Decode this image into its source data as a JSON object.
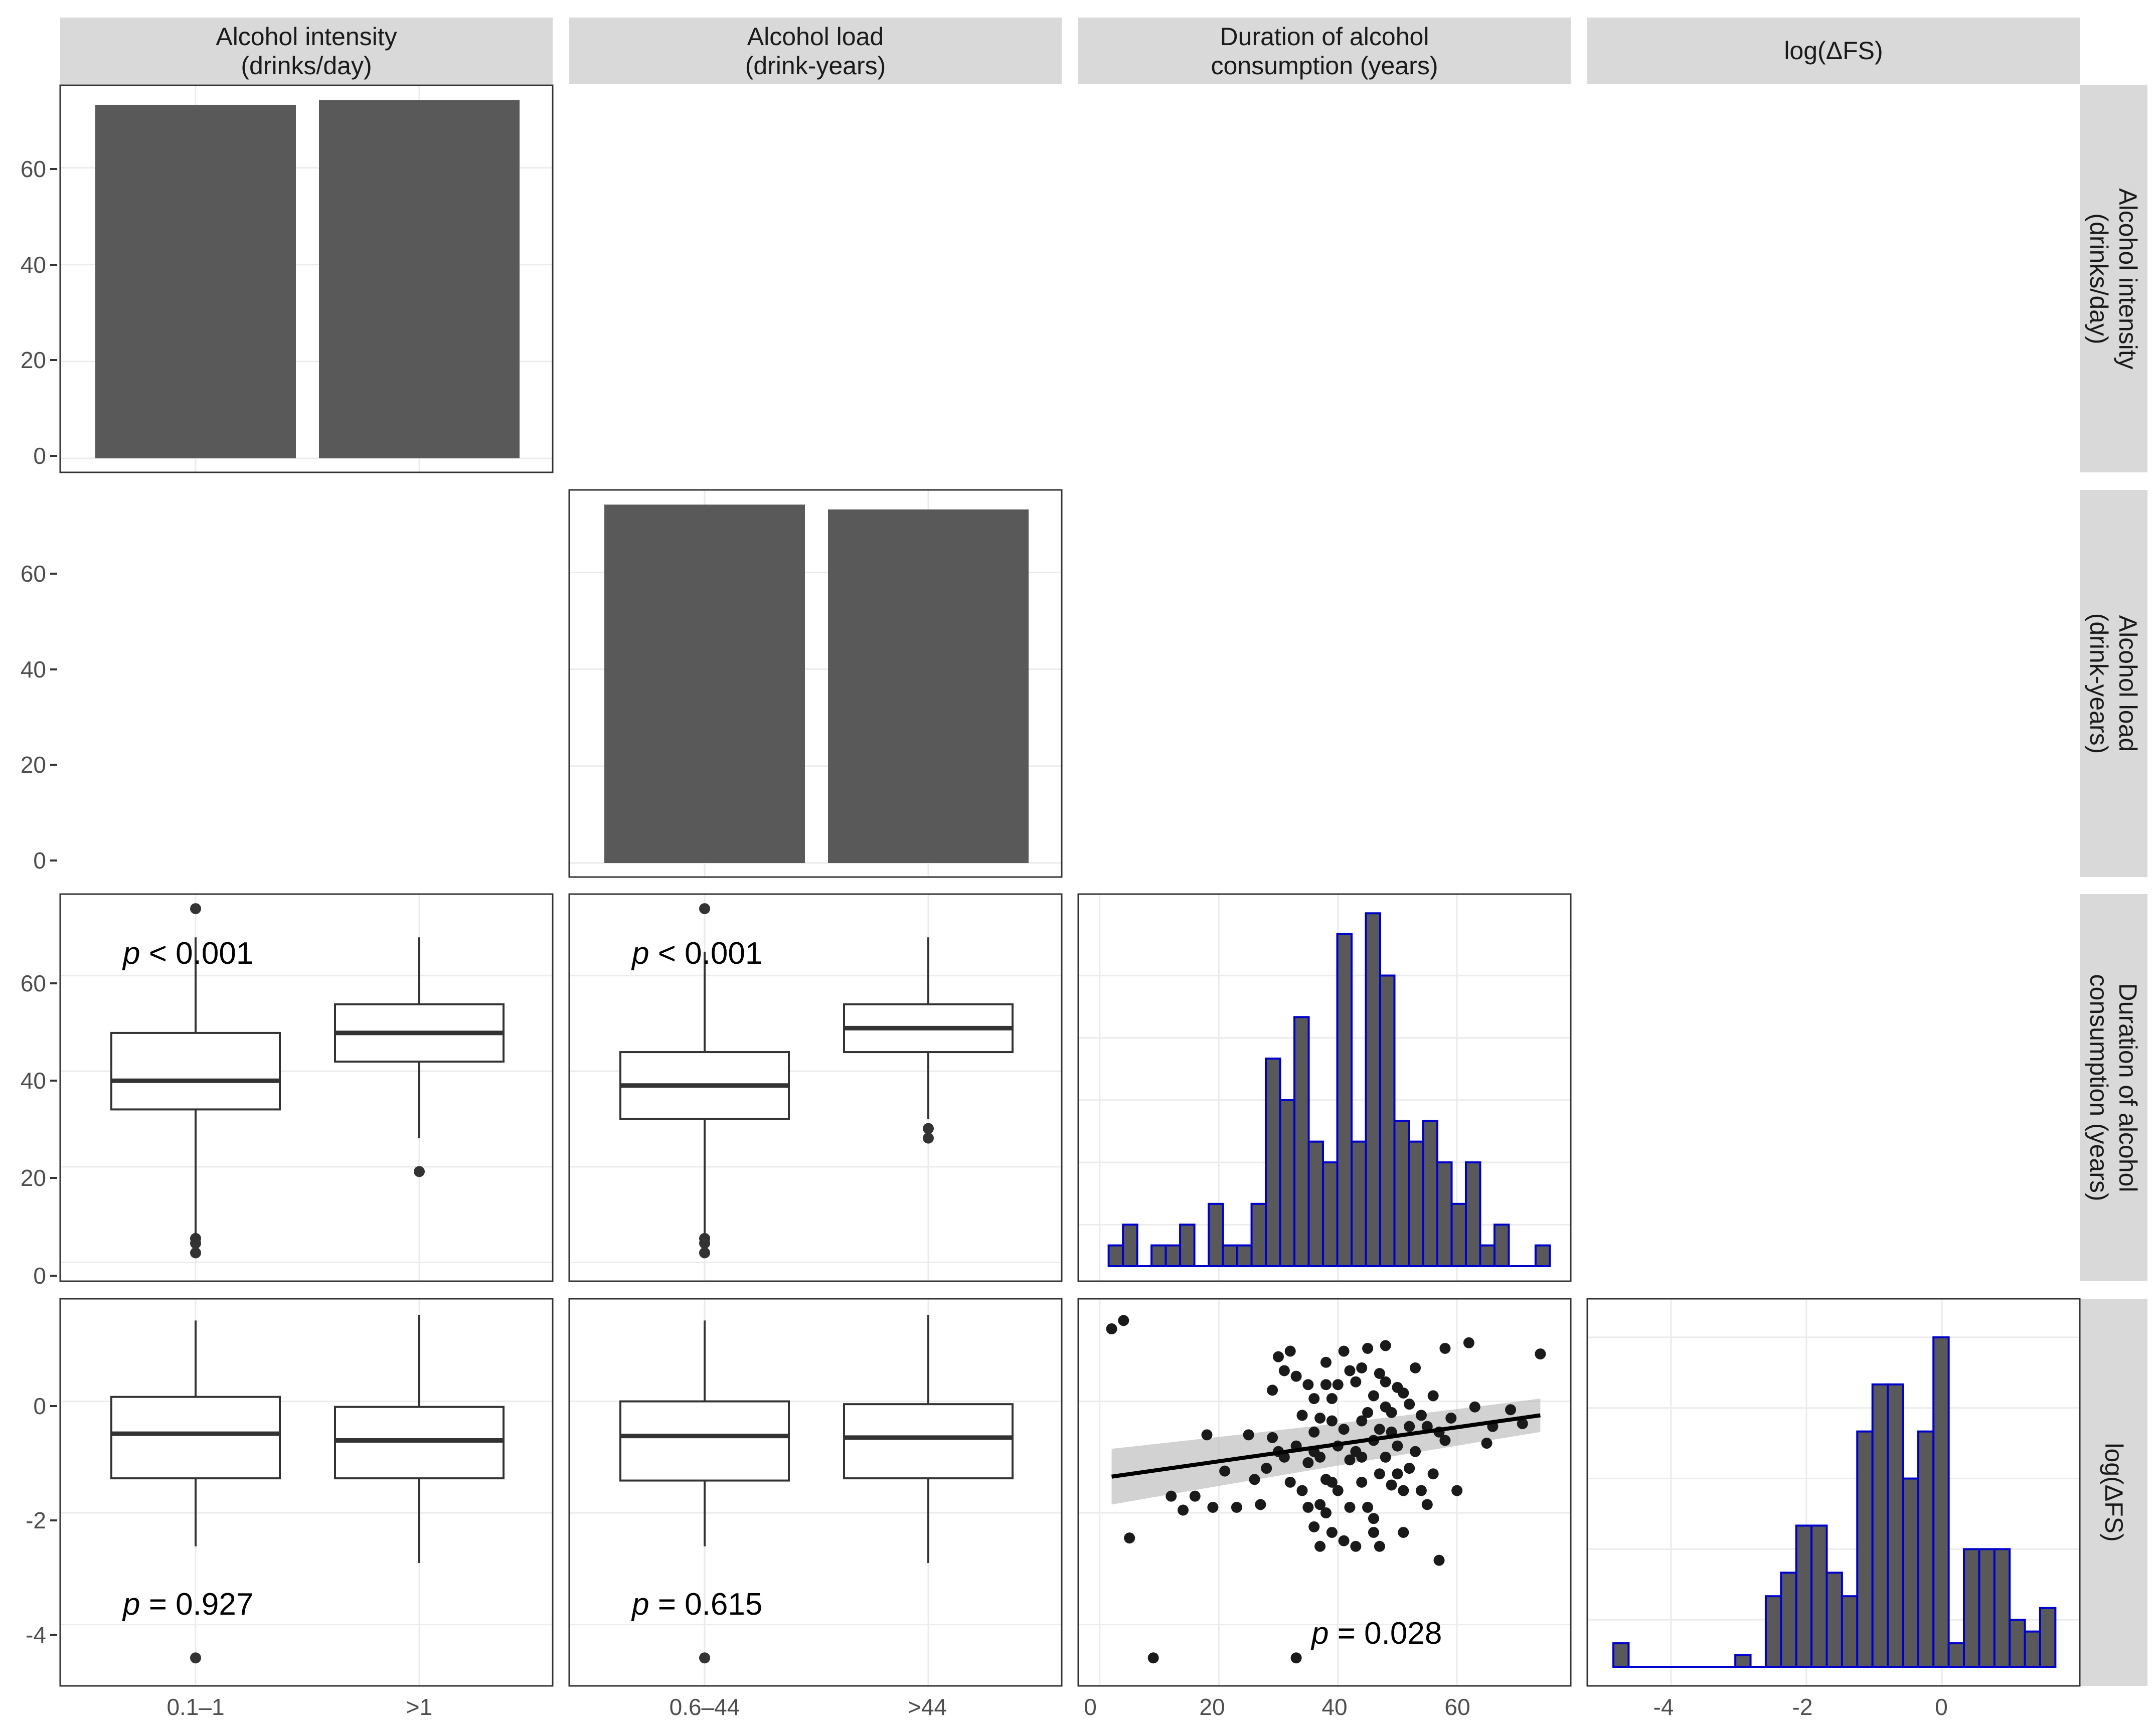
{
  "figure": {
    "columns": [
      {
        "label_line1": "Alcohol intensity",
        "label_line2": "(drinks/day)"
      },
      {
        "label_line1": "Alcohol load",
        "label_line2": "(drink-years)"
      },
      {
        "label_line1": "Duration of alcohol",
        "label_line2": "consumption (years)"
      },
      {
        "label_line1": "log(ΔFS)",
        "label_line2": ""
      }
    ],
    "rows": [
      {
        "label_line1": "Alcohol intensity",
        "label_line2": "(drinks/day)"
      },
      {
        "label_line1": "Alcohol load",
        "label_line2": "(drink-years)"
      },
      {
        "label_line1": "Duration of alcohol",
        "label_line2": "consumption (years)"
      },
      {
        "label_line1": "log(ΔFS)",
        "label_line2": ""
      }
    ],
    "colors": {
      "bar_fill": "#595959",
      "hist_outline": "#0000cc",
      "strip_bg": "#d9d9d9",
      "grid": "#ebebeb",
      "point": "#1a1a1a",
      "ribbon": "#bfbfbf"
    }
  },
  "chart_data": [
    {
      "panel": "row1-col1",
      "type": "bar",
      "categories": [
        "0.1–1",
        ">1"
      ],
      "values": [
        73,
        74
      ],
      "ylim": [
        0,
        76
      ],
      "yticks": [
        "0",
        "20",
        "40",
        "60"
      ],
      "xticks": [
        "0.1–1",
        ">1"
      ]
    },
    {
      "panel": "row2-col2",
      "type": "bar",
      "categories": [
        "0.6–44",
        ">44"
      ],
      "values": [
        74,
        73
      ],
      "ylim": [
        0,
        76
      ],
      "yticks": [
        "0",
        "20",
        "40",
        "60"
      ],
      "xticks": [
        "0.6–44",
        ">44"
      ]
    },
    {
      "panel": "row3-col1",
      "type": "box",
      "categories": [
        "0.1–1",
        ">1"
      ],
      "boxes": [
        {
          "q1": 32,
          "median": 38,
          "q3": 48,
          "whisker_low": 6,
          "whisker_high": 68,
          "outliers": [
            74,
            5,
            4,
            2
          ]
        },
        {
          "q1": 42,
          "median": 48,
          "q3": 54,
          "whisker_low": 26,
          "whisker_high": 68,
          "outliers": [
            19
          ]
        }
      ],
      "ylim": [
        -1,
        76
      ],
      "annotation": {
        "p": "p",
        "rest": " < 0.001"
      }
    },
    {
      "panel": "row3-col2",
      "type": "box",
      "categories": [
        "0.6–44",
        ">44"
      ],
      "boxes": [
        {
          "q1": 30,
          "median": 37,
          "q3": 44,
          "whisker_low": 6,
          "whisker_high": 65,
          "outliers": [
            74,
            5,
            4,
            2
          ]
        },
        {
          "q1": 44,
          "median": 49,
          "q3": 54,
          "whisker_low": 30,
          "whisker_high": 68,
          "outliers": [
            28,
            26
          ]
        }
      ],
      "ylim": [
        -1,
        76
      ],
      "annotation": {
        "p": "p",
        "rest": " < 0.001"
      }
    },
    {
      "panel": "row3-col3",
      "type": "histogram",
      "xlim": [
        0,
        76
      ],
      "bin_width": 2.4,
      "bins": [
        {
          "x0": 1.5,
          "x1": 3.9,
          "count": 1
        },
        {
          "x0": 3.9,
          "x1": 6.3,
          "count": 2
        },
        {
          "x0": 8.7,
          "x1": 11.1,
          "count": 1
        },
        {
          "x0": 11.1,
          "x1": 13.5,
          "count": 1
        },
        {
          "x0": 13.5,
          "x1": 15.9,
          "count": 2
        },
        {
          "x0": 18.3,
          "x1": 20.7,
          "count": 3
        },
        {
          "x0": 20.7,
          "x1": 23.1,
          "count": 1
        },
        {
          "x0": 23.1,
          "x1": 25.5,
          "count": 1
        },
        {
          "x0": 25.5,
          "x1": 27.9,
          "count": 3
        },
        {
          "x0": 27.9,
          "x1": 30.3,
          "count": 10
        },
        {
          "x0": 30.3,
          "x1": 32.7,
          "count": 8
        },
        {
          "x0": 32.7,
          "x1": 35.1,
          "count": 12
        },
        {
          "x0": 35.1,
          "x1": 37.5,
          "count": 6
        },
        {
          "x0": 37.5,
          "x1": 39.9,
          "count": 5
        },
        {
          "x0": 39.9,
          "x1": 42.3,
          "count": 16
        },
        {
          "x0": 42.3,
          "x1": 44.7,
          "count": 6
        },
        {
          "x0": 44.7,
          "x1": 47.1,
          "count": 17
        },
        {
          "x0": 47.1,
          "x1": 49.5,
          "count": 14
        },
        {
          "x0": 49.5,
          "x1": 51.9,
          "count": 7
        },
        {
          "x0": 51.9,
          "x1": 54.3,
          "count": 6
        },
        {
          "x0": 54.3,
          "x1": 56.7,
          "count": 7
        },
        {
          "x0": 56.7,
          "x1": 59.1,
          "count": 5
        },
        {
          "x0": 59.1,
          "x1": 61.5,
          "count": 3
        },
        {
          "x0": 61.5,
          "x1": 63.9,
          "count": 5
        },
        {
          "x0": 63.9,
          "x1": 66.3,
          "count": 1
        },
        {
          "x0": 66.3,
          "x1": 68.7,
          "count": 2
        },
        {
          "x0": 73.2,
          "x1": 75.6,
          "count": 1
        }
      ]
    },
    {
      "panel": "row4-col1",
      "type": "box",
      "categories": [
        "0.1–1",
        ">1"
      ],
      "boxes": [
        {
          "q1": -1.38,
          "median": -0.58,
          "q3": 0.08,
          "whisker_low": -2.6,
          "whisker_high": 1.45,
          "outliers": [
            -4.6
          ]
        },
        {
          "q1": -1.38,
          "median": -0.7,
          "q3": -0.1,
          "whisker_low": -2.9,
          "whisker_high": 1.55,
          "outliers": []
        }
      ],
      "ylim": [
        -4.85,
        1.75
      ],
      "yticks": [
        "-4",
        "-2",
        "0"
      ],
      "xticks": [
        "0.1–1",
        ">1"
      ],
      "annotation": {
        "p": "p",
        "rest": " = 0.927"
      }
    },
    {
      "panel": "row4-col2",
      "type": "box",
      "categories": [
        "0.6–44",
        ">44"
      ],
      "boxes": [
        {
          "q1": -1.42,
          "median": -0.62,
          "q3": 0.0,
          "whisker_low": -2.6,
          "whisker_high": 1.45,
          "outliers": [
            -4.6
          ]
        },
        {
          "q1": -1.38,
          "median": -0.65,
          "q3": -0.05,
          "whisker_low": -2.9,
          "whisker_high": 1.55,
          "outliers": []
        }
      ],
      "ylim": [
        -4.85,
        1.75
      ],
      "xticks": [
        "0.6–44",
        ">44"
      ],
      "annotation": {
        "p": "p",
        "rest": " = 0.615"
      }
    },
    {
      "panel": "row4-col3",
      "type": "scatter",
      "xlim": [
        -1.5,
        77
      ],
      "ylim": [
        -4.85,
        1.75
      ],
      "xticks": [
        "0",
        "20",
        "40",
        "60"
      ],
      "fit": {
        "x0": 2,
        "y0": -1.35,
        "x1": 74,
        "y1": -0.25,
        "band_halfwidth_left": 0.5,
        "band_halfwidth_mid": 0.2,
        "band_halfwidth_right": 0.3
      },
      "points": [
        [
          2,
          1.3
        ],
        [
          4,
          1.45
        ],
        [
          5,
          -2.45
        ],
        [
          9,
          -4.6
        ],
        [
          12,
          -1.7
        ],
        [
          14,
          -1.95
        ],
        [
          16,
          -1.7
        ],
        [
          18,
          -0.6
        ],
        [
          19,
          -1.9
        ],
        [
          21,
          -1.25
        ],
        [
          23,
          -1.9
        ],
        [
          25,
          -0.6
        ],
        [
          27,
          -1.85
        ],
        [
          28,
          -1.2
        ],
        [
          29,
          0.2
        ],
        [
          29,
          -0.65
        ],
        [
          30,
          -0.9
        ],
        [
          30,
          0.8
        ],
        [
          31,
          0.55
        ],
        [
          31,
          -1.0
        ],
        [
          32,
          0.9
        ],
        [
          32,
          -1.45
        ],
        [
          33,
          0.45
        ],
        [
          33,
          -0.8
        ],
        [
          33,
          -4.6
        ],
        [
          34,
          -0.25
        ],
        [
          34,
          -1.6
        ],
        [
          35,
          0.3
        ],
        [
          35,
          -1.9
        ],
        [
          35,
          -1.1
        ],
        [
          36,
          0.05
        ],
        [
          36,
          -2.25
        ],
        [
          36,
          -0.55
        ],
        [
          37,
          -1.0
        ],
        [
          37,
          -1.85
        ],
        [
          37,
          -0.3
        ],
        [
          37,
          -2.6
        ],
        [
          38,
          0.7
        ],
        [
          38,
          -2.0
        ],
        [
          38,
          0.3
        ],
        [
          38,
          -1.4
        ],
        [
          39,
          -0.35
        ],
        [
          39,
          -1.45
        ],
        [
          39,
          -2.35
        ],
        [
          39,
          0.05
        ],
        [
          40,
          -1.6
        ],
        [
          40,
          -0.8
        ],
        [
          40,
          0.3
        ],
        [
          41,
          0.9
        ],
        [
          41,
          -0.5
        ],
        [
          41,
          -2.5
        ],
        [
          42,
          -1.05
        ],
        [
          42,
          0.55
        ],
        [
          42,
          -1.9
        ],
        [
          43,
          -0.9
        ],
        [
          43,
          0.35
        ],
        [
          43,
          -2.6
        ],
        [
          44,
          -0.35
        ],
        [
          44,
          0.6
        ],
        [
          44,
          -1.45
        ],
        [
          45,
          0.95
        ],
        [
          45,
          -1.9
        ],
        [
          45,
          -0.2
        ],
        [
          46,
          -2.35
        ],
        [
          46,
          -0.7
        ],
        [
          46,
          0.1
        ],
        [
          46,
          -2.1
        ],
        [
          47,
          -0.5
        ],
        [
          47,
          0.5
        ],
        [
          47,
          -1.3
        ],
        [
          47,
          -2.6
        ],
        [
          48,
          1.0
        ],
        [
          48,
          -1.0
        ],
        [
          48,
          -0.1
        ],
        [
          48,
          0.35
        ],
        [
          49,
          -0.55
        ],
        [
          49,
          -1.5
        ],
        [
          49,
          -0.2
        ],
        [
          50,
          -1.3
        ],
        [
          50,
          0.25
        ],
        [
          50,
          -0.8
        ],
        [
          51,
          -2.35
        ],
        [
          51,
          -1.6
        ],
        [
          51,
          0.15
        ],
        [
          52,
          -0.45
        ],
        [
          52,
          -1.2
        ],
        [
          53,
          -0.9
        ],
        [
          53,
          0.6
        ],
        [
          54,
          -1.6
        ],
        [
          54,
          -0.25
        ],
        [
          55,
          -1.85
        ],
        [
          55,
          -0.45
        ],
        [
          56,
          0.1
        ],
        [
          56,
          -1.3
        ],
        [
          57,
          -2.85
        ],
        [
          57,
          -0.55
        ],
        [
          58,
          0.95
        ],
        [
          58,
          -0.7
        ],
        [
          59,
          -0.3
        ],
        [
          60,
          -1.6
        ],
        [
          62,
          1.05
        ],
        [
          63,
          -0.1
        ],
        [
          65,
          -0.75
        ],
        [
          66,
          -0.45
        ],
        [
          69,
          -0.15
        ],
        [
          71,
          -0.4
        ],
        [
          74,
          0.85
        ],
        [
          26,
          -1.4
        ],
        [
          36,
          -0.9
        ],
        [
          44,
          -1.0
        ],
        [
          52,
          -0.05
        ]
      ],
      "annotation": {
        "p": "p",
        "rest": " = 0.028"
      }
    },
    {
      "panel": "row4-col4",
      "type": "histogram",
      "xlim": [
        -5.05,
        1.85
      ],
      "xticks": [
        "-4",
        "-2",
        "0"
      ],
      "bin_width": 0.225,
      "bins": [
        {
          "x0": -4.85,
          "x1": -4.625,
          "count": 1
        },
        {
          "x0": -3.05,
          "x1": -2.825,
          "count": 0.5
        },
        {
          "x0": -2.6,
          "x1": -2.375,
          "count": 3
        },
        {
          "x0": -2.375,
          "x1": -2.15,
          "count": 4
        },
        {
          "x0": -2.15,
          "x1": -1.925,
          "count": 6
        },
        {
          "x0": -1.925,
          "x1": -1.7,
          "count": 6
        },
        {
          "x0": -1.7,
          "x1": -1.475,
          "count": 4
        },
        {
          "x0": -1.475,
          "x1": -1.25,
          "count": 3
        },
        {
          "x0": -1.25,
          "x1": -1.025,
          "count": 10
        },
        {
          "x0": -1.025,
          "x1": -0.8,
          "count": 12
        },
        {
          "x0": -0.8,
          "x1": -0.575,
          "count": 12
        },
        {
          "x0": -0.575,
          "x1": -0.35,
          "count": 8
        },
        {
          "x0": -0.35,
          "x1": -0.125,
          "count": 10
        },
        {
          "x0": -0.125,
          "x1": 0.1,
          "count": 14
        },
        {
          "x0": 0.1,
          "x1": 0.325,
          "count": 1
        },
        {
          "x0": 0.325,
          "x1": 0.55,
          "count": 5
        },
        {
          "x0": 0.55,
          "x1": 0.775,
          "count": 5
        },
        {
          "x0": 0.775,
          "x1": 1.0,
          "count": 5
        },
        {
          "x0": 1.0,
          "x1": 1.225,
          "count": 2
        },
        {
          "x0": 1.225,
          "x1": 1.45,
          "count": 1.5
        },
        {
          "x0": 1.45,
          "x1": 1.675,
          "count": 2.5
        }
      ],
      "ylim": [
        0,
        15
      ]
    }
  ]
}
